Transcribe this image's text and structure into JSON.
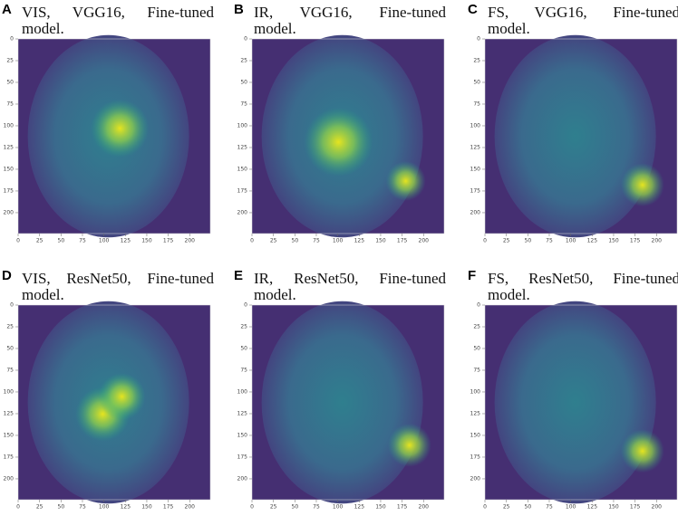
{
  "chart_data": [
    {
      "type": "heatmap",
      "label": "A",
      "title": "VIS, VGG16, Fine-tuned model.",
      "xlim": [
        0,
        224
      ],
      "ylim": [
        0,
        224
      ],
      "y_inverted": true,
      "xticks": [
        0,
        25,
        50,
        75,
        100,
        125,
        150,
        175,
        200
      ],
      "yticks": [
        0,
        25,
        50,
        75,
        100,
        125,
        150,
        175,
        200
      ]
    },
    {
      "type": "heatmap",
      "label": "B",
      "title": "IR, VGG16, Fine-tuned model.",
      "xlim": [
        0,
        224
      ],
      "ylim": [
        0,
        224
      ],
      "y_inverted": true,
      "xticks": [
        0,
        25,
        50,
        75,
        100,
        125,
        150,
        175,
        200
      ],
      "yticks": [
        0,
        25,
        50,
        75,
        100,
        125,
        150,
        175,
        200
      ]
    },
    {
      "type": "heatmap",
      "label": "C",
      "title": "FS, VGG16, Fine-tuned model.",
      "xlim": [
        0,
        224
      ],
      "ylim": [
        0,
        224
      ],
      "y_inverted": true,
      "xticks": [
        0,
        25,
        50,
        75,
        100,
        125,
        150,
        175,
        200
      ],
      "yticks": [
        0,
        25,
        50,
        75,
        100,
        125,
        150,
        175,
        200
      ]
    },
    {
      "type": "heatmap",
      "label": "D",
      "title": "VIS, ResNet50, Fine-tuned model.",
      "xlim": [
        0,
        224
      ],
      "ylim": [
        0,
        224
      ],
      "y_inverted": true,
      "xticks": [
        0,
        25,
        50,
        75,
        100,
        125,
        150,
        175,
        200
      ],
      "yticks": [
        0,
        25,
        50,
        75,
        100,
        125,
        150,
        175,
        200
      ]
    },
    {
      "type": "heatmap",
      "label": "E",
      "title": "IR, ResNet50, Fine-tuned model.",
      "xlim": [
        0,
        224
      ],
      "ylim": [
        0,
        224
      ],
      "y_inverted": true,
      "xticks": [
        0,
        25,
        50,
        75,
        100,
        125,
        150,
        175,
        200
      ],
      "yticks": [
        0,
        25,
        50,
        75,
        100,
        125,
        150,
        175,
        200
      ]
    },
    {
      "type": "heatmap",
      "label": "F",
      "title": "FS, ResNet50, Fine-tuned model.",
      "xlim": [
        0,
        224
      ],
      "ylim": [
        0,
        224
      ],
      "y_inverted": true,
      "xticks": [
        0,
        25,
        50,
        75,
        100,
        125,
        150,
        175,
        200
      ],
      "yticks": [
        0,
        25,
        50,
        75,
        100,
        125,
        150,
        175,
        200
      ]
    }
  ]
}
